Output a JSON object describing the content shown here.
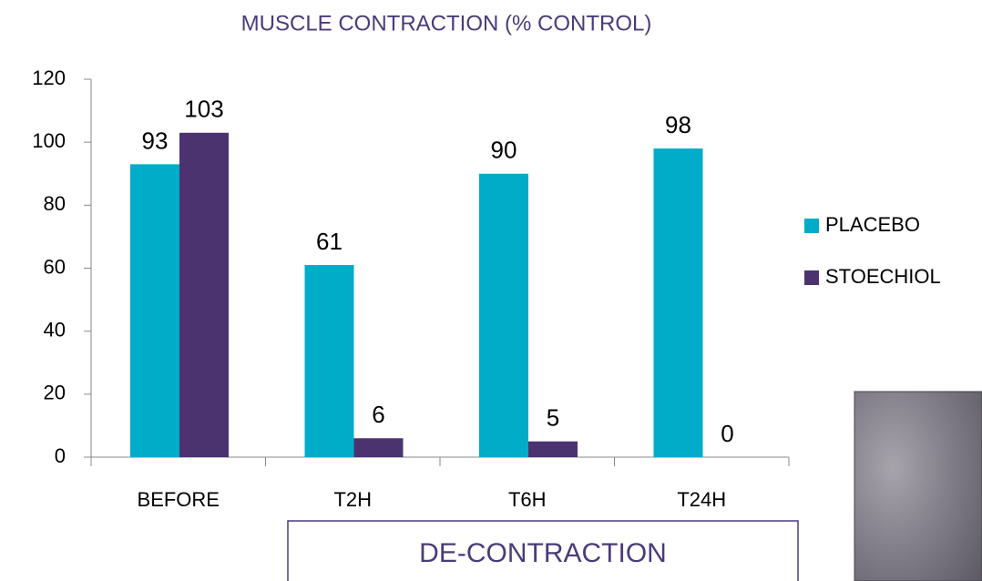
{
  "chart_data": {
    "type": "bar",
    "title": "MUSCLE CONTRACTION (% CONTROL)",
    "categories": [
      "BEFORE",
      "T2H",
      "T6H",
      "T24H"
    ],
    "series": [
      {
        "name": "PLACEBO",
        "color": "#00acc8",
        "values": [
          93,
          61,
          90,
          98
        ]
      },
      {
        "name": "STOECHIOL",
        "color": "#4b3370",
        "values": [
          103,
          6,
          5,
          0
        ]
      }
    ],
    "ylim": [
      0,
      120
    ],
    "yticks": [
      0,
      20,
      40,
      60,
      80,
      100,
      120
    ],
    "grid": false,
    "legend": "right",
    "annotation": "DE-CONTRACTION"
  }
}
